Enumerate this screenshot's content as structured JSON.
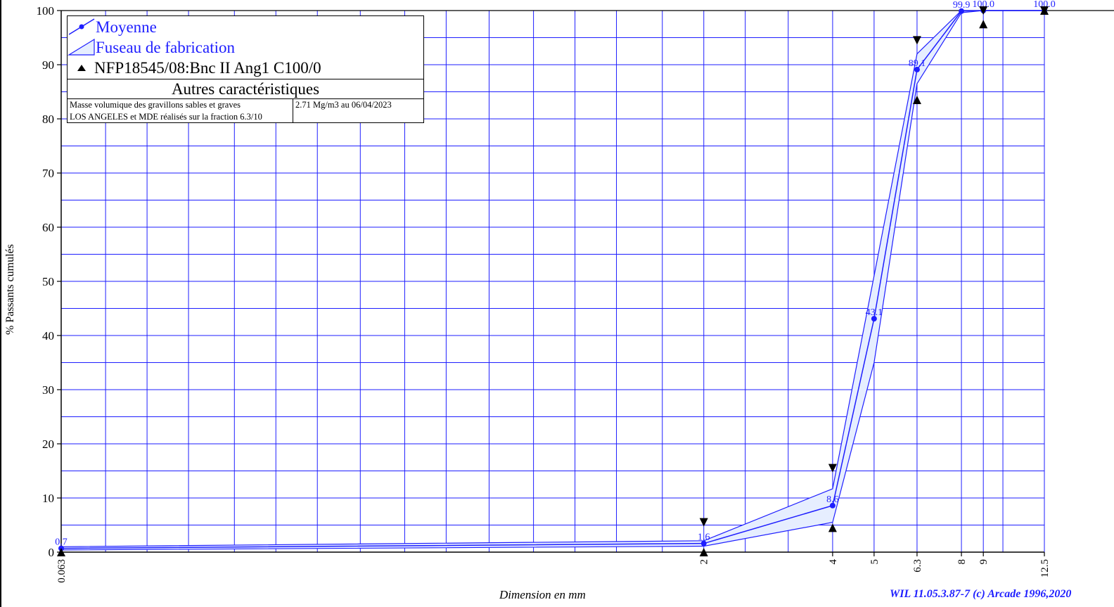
{
  "chart_data": {
    "type": "line",
    "title": "",
    "xlabel": "Dimension en mm",
    "ylabel": "% Passants cumulés",
    "x_scale": "log",
    "xlim": [
      0.063,
      12.5
    ],
    "ylim": [
      0,
      100
    ],
    "x_ticks": [
      "0.063",
      "2",
      "4",
      "5",
      "6.3",
      "8",
      "9",
      "12.5"
    ],
    "y_ticks": [
      "0",
      "10",
      "20",
      "30",
      "40",
      "50",
      "60",
      "70",
      "80",
      "90",
      "100"
    ],
    "grid": true,
    "legend_position": "top-left",
    "series": [
      {
        "name": "Moyenne",
        "color": "#1e1eff",
        "x": [
          0.063,
          2,
          4,
          5,
          6.3,
          8,
          9,
          12.5
        ],
        "y": [
          0.7,
          1.6,
          8.6,
          43.1,
          89.1,
          99.9,
          100.0,
          100.0
        ],
        "labels": [
          "0.7",
          "1.6",
          "8.6",
          "43.1",
          "89.1",
          "99.9",
          "100.0",
          "100.0"
        ]
      },
      {
        "name": "Fuseau de fabrication",
        "color": "#1e1eff",
        "fill": "#e6eeff",
        "x": [
          0.063,
          2,
          4,
          5,
          6.3,
          8,
          9,
          12.5
        ],
        "upper": [
          1.0,
          2.1,
          11.7,
          51.0,
          92.0,
          100,
          100,
          100
        ],
        "lower": [
          0.4,
          1.1,
          5.5,
          35.0,
          86.5,
          99.6,
          100,
          100
        ]
      },
      {
        "name": "NFP18545/08:Bnc II Ang1 C100/0",
        "color": "#000000",
        "x": [
          0.063,
          2,
          4,
          6.3,
          9,
          12.5
        ],
        "upper": [
          null,
          5.5,
          15.5,
          94.5,
          100,
          100
        ],
        "lower": [
          0,
          0,
          4.5,
          83.5,
          97.5,
          100
        ]
      }
    ]
  },
  "legend": {
    "items": [
      {
        "label": "Moyenne"
      },
      {
        "label": "Fuseau de fabrication"
      },
      {
        "label": "NFP18545/08:Bnc II Ang1 C100/0"
      }
    ],
    "section_title": "Autres caractéristiques",
    "characteristics": [
      {
        "name": "Masse volumique des gravillons sables et graves",
        "value": "2.71 Mg/m3  au 06/04/2023"
      },
      {
        "name": "LOS ANGELES et MDE réalisés sur la fraction 6.3/10",
        "value": ""
      }
    ]
  },
  "footer": "WIL 11.05.3.87-7 (c) Arcade 1996,2020"
}
